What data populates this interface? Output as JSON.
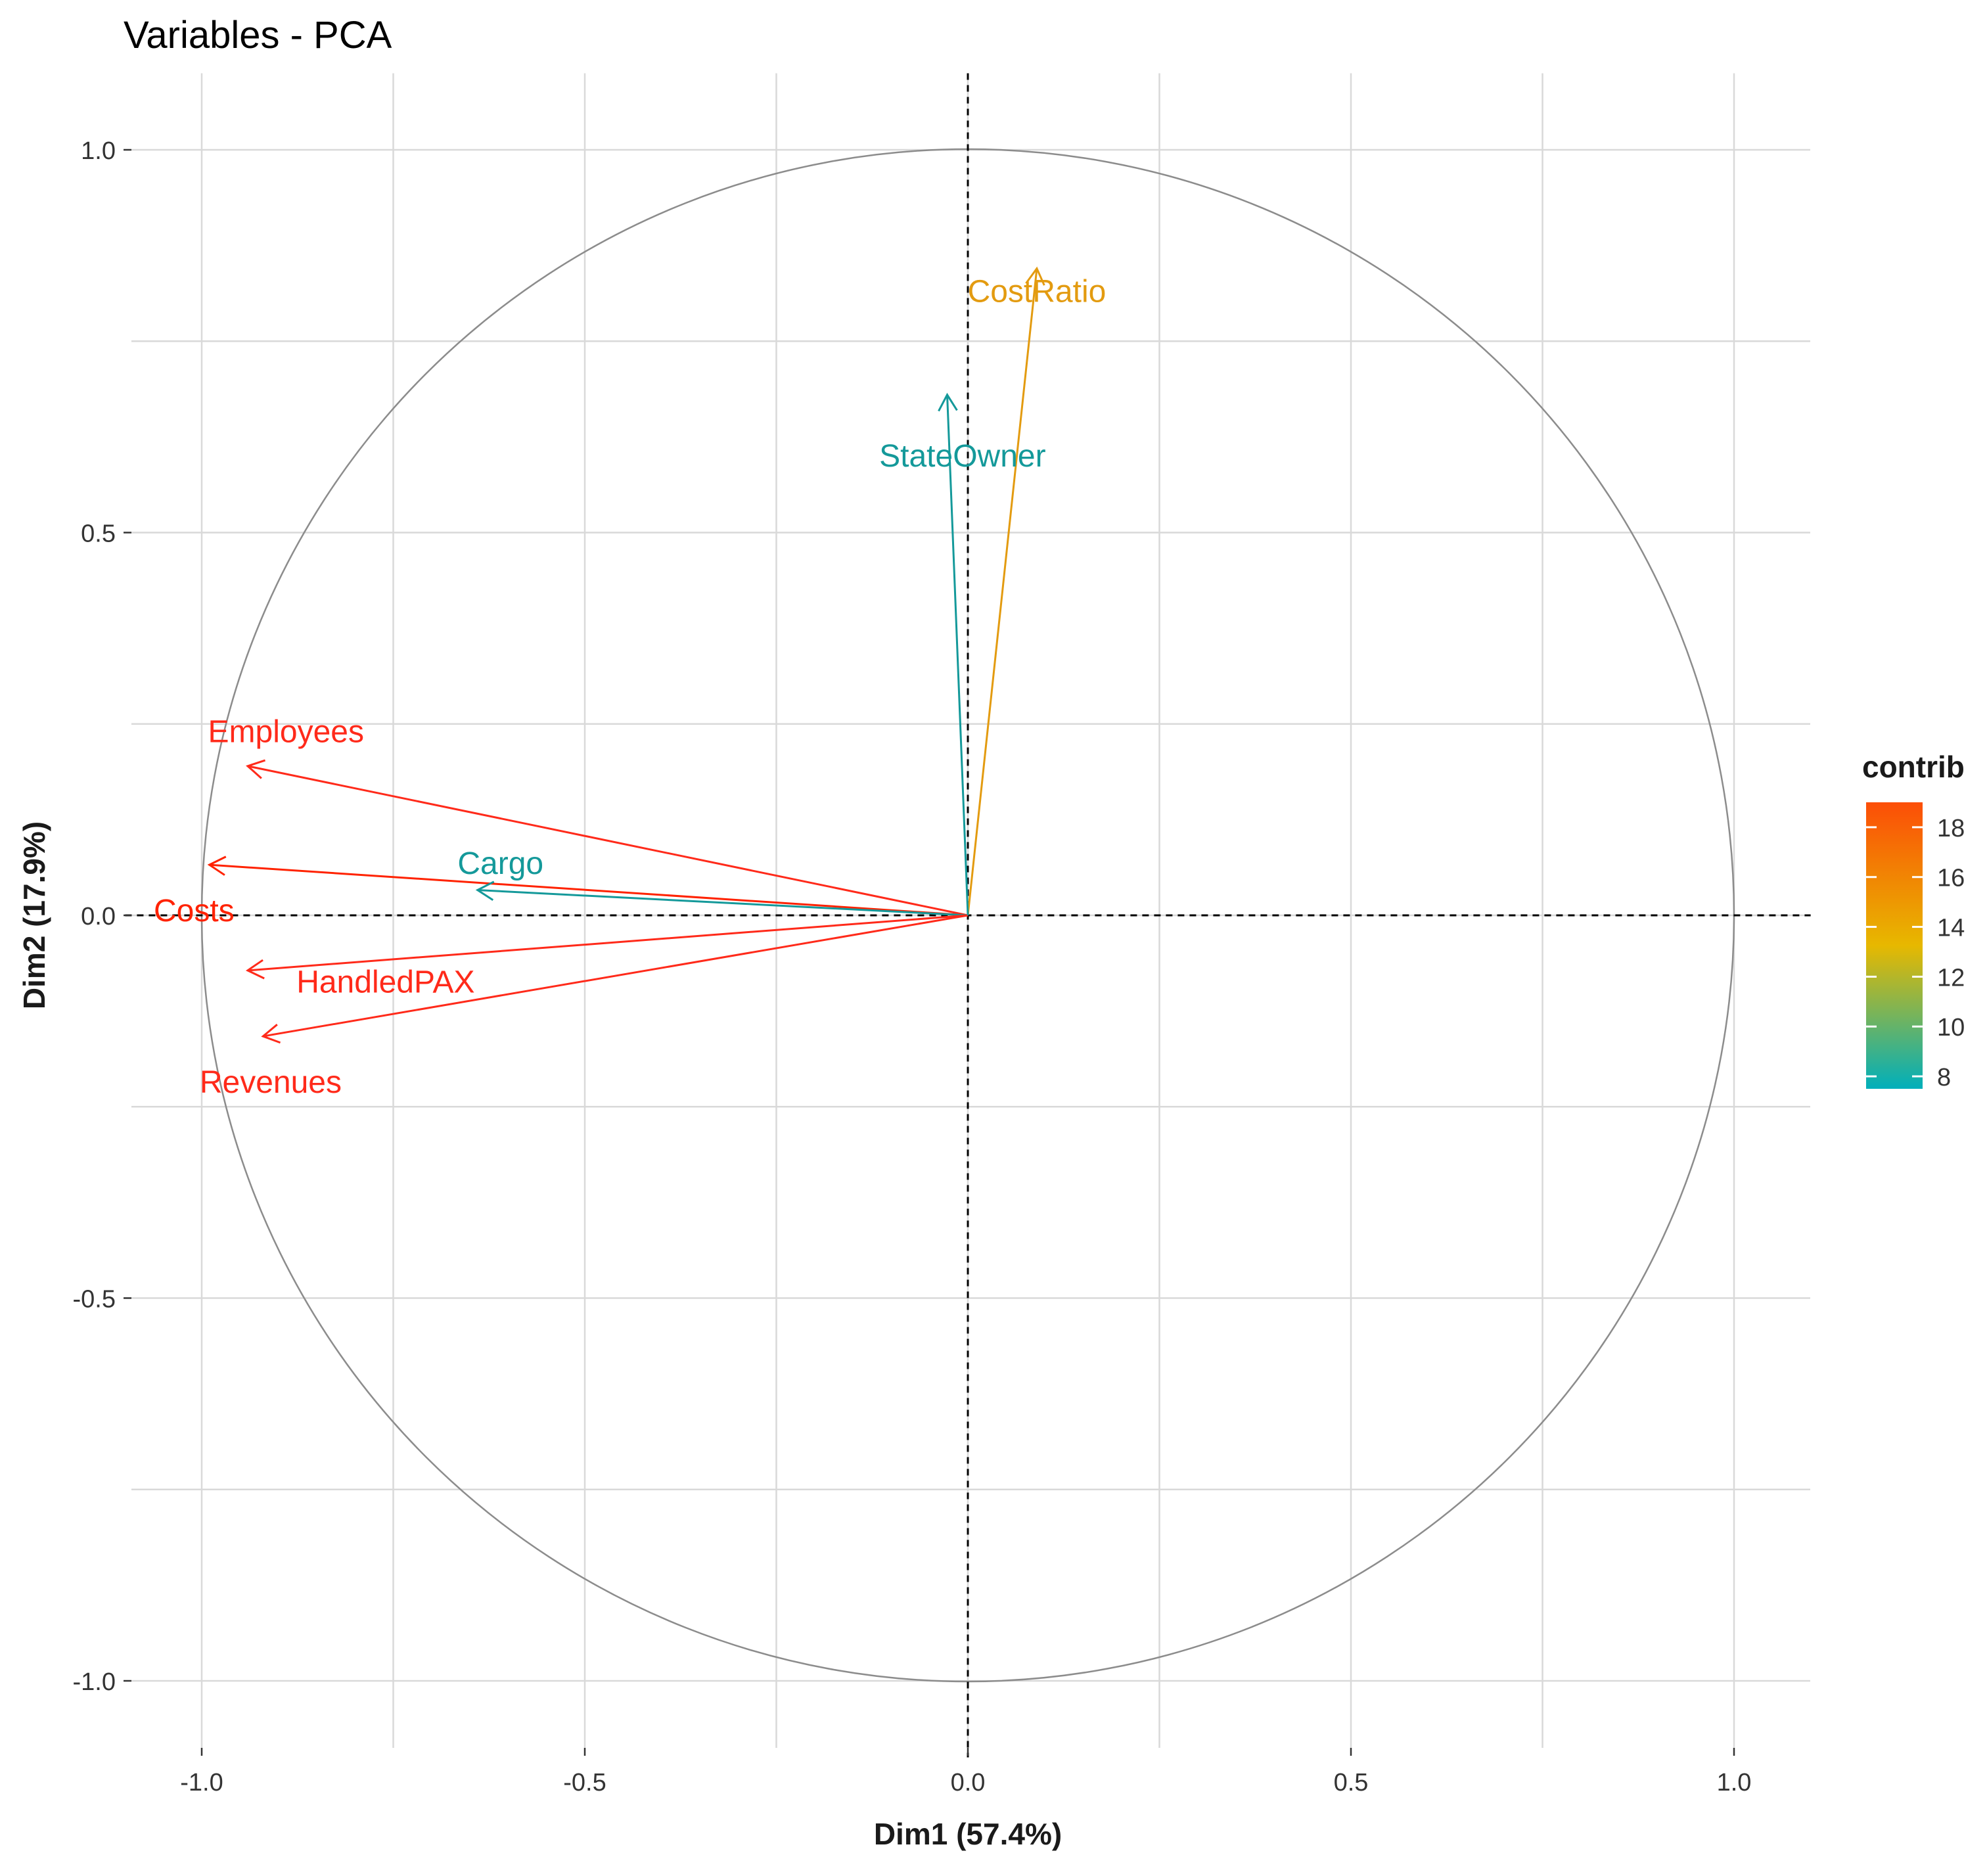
{
  "chart_data": {
    "type": "scatter",
    "subtype": "pca-variable-correlation-circle",
    "title": "Variables - PCA",
    "xlabel": "Dim1 (57.4%)",
    "ylabel": "Dim2 (17.9%)",
    "xlim": [
      -1.1,
      1.1
    ],
    "ylim": [
      -1.1,
      1.1
    ],
    "x_ticks": [
      -1.0,
      -0.5,
      0.0,
      0.5,
      1.0
    ],
    "x_tick_labels": [
      "-1.0",
      "-0.5",
      "0.0",
      "0.5",
      "1.0"
    ],
    "y_ticks": [
      -1.0,
      -0.5,
      0.0,
      0.5,
      1.0
    ],
    "y_tick_labels": [
      "-1.0",
      "-0.5",
      "0.0",
      "0.5",
      "1.0"
    ],
    "grid": true,
    "unit_circle": true,
    "reference_lines": {
      "x": 0,
      "y": 0,
      "style": "dashed"
    },
    "variables": [
      {
        "name": "Employees",
        "x": -0.94,
        "y": 0.195,
        "contrib": 18.0,
        "color": "#FF2A1A"
      },
      {
        "name": "Costs",
        "x": -0.99,
        "y": 0.066,
        "contrib": 19.0,
        "color": "#FF2200"
      },
      {
        "name": "Cargo",
        "x": -0.64,
        "y": 0.033,
        "contrib": 7.8,
        "color": "#14999A"
      },
      {
        "name": "HandledPAX",
        "x": -0.94,
        "y": -0.072,
        "contrib": 18.0,
        "color": "#FF2A1A"
      },
      {
        "name": "Revenues",
        "x": -0.92,
        "y": -0.158,
        "contrib": 18.0,
        "color": "#FF2A1A"
      },
      {
        "name": "CostRatio",
        "x": 0.09,
        "y": 0.845,
        "contrib": 13.5,
        "color": "#E39B10"
      },
      {
        "name": "StateOwner",
        "x": -0.027,
        "y": 0.68,
        "contrib": 8.2,
        "color": "#14999A"
      }
    ],
    "legend": {
      "title": "contrib",
      "position": "right",
      "range": [
        7.5,
        19
      ],
      "tick_values": [
        8,
        10,
        12,
        14,
        16,
        18
      ],
      "tick_labels": [
        "8",
        "10",
        "12",
        "14",
        "16",
        "18"
      ],
      "gradient_colors": [
        "#00AFBB",
        "#E7B800",
        "#FC4E07"
      ]
    },
    "colors": {
      "grid": "#D9D9D9",
      "circle": "#8C8C8C",
      "axis_text": "#1A1A1A",
      "reference_line": "#000000"
    }
  }
}
